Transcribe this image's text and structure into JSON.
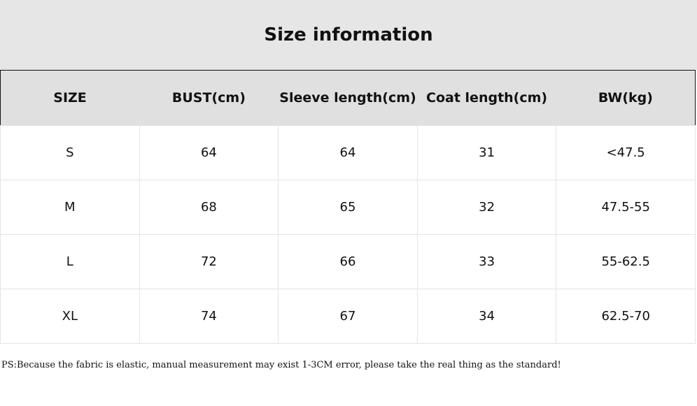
{
  "header": {
    "title": "Size information"
  },
  "table": {
    "columns": [
      "SIZE",
      "BUST(cm)",
      "Sleeve length(cm)",
      "Coat length(cm)",
      "BW(kg)"
    ],
    "rows": [
      [
        "S",
        "64",
        "64",
        "31",
        "<47.5"
      ],
      [
        "M",
        "68",
        "65",
        "32",
        "47.5-55"
      ],
      [
        "L",
        "72",
        "66",
        "33",
        "55-62.5"
      ],
      [
        "XL",
        "74",
        "67",
        "34",
        "62.5-70"
      ]
    ]
  },
  "note": "PS:Because the fabric is elastic, manual measurement may exist 1-3CM error, please take the real thing as the standard!"
}
